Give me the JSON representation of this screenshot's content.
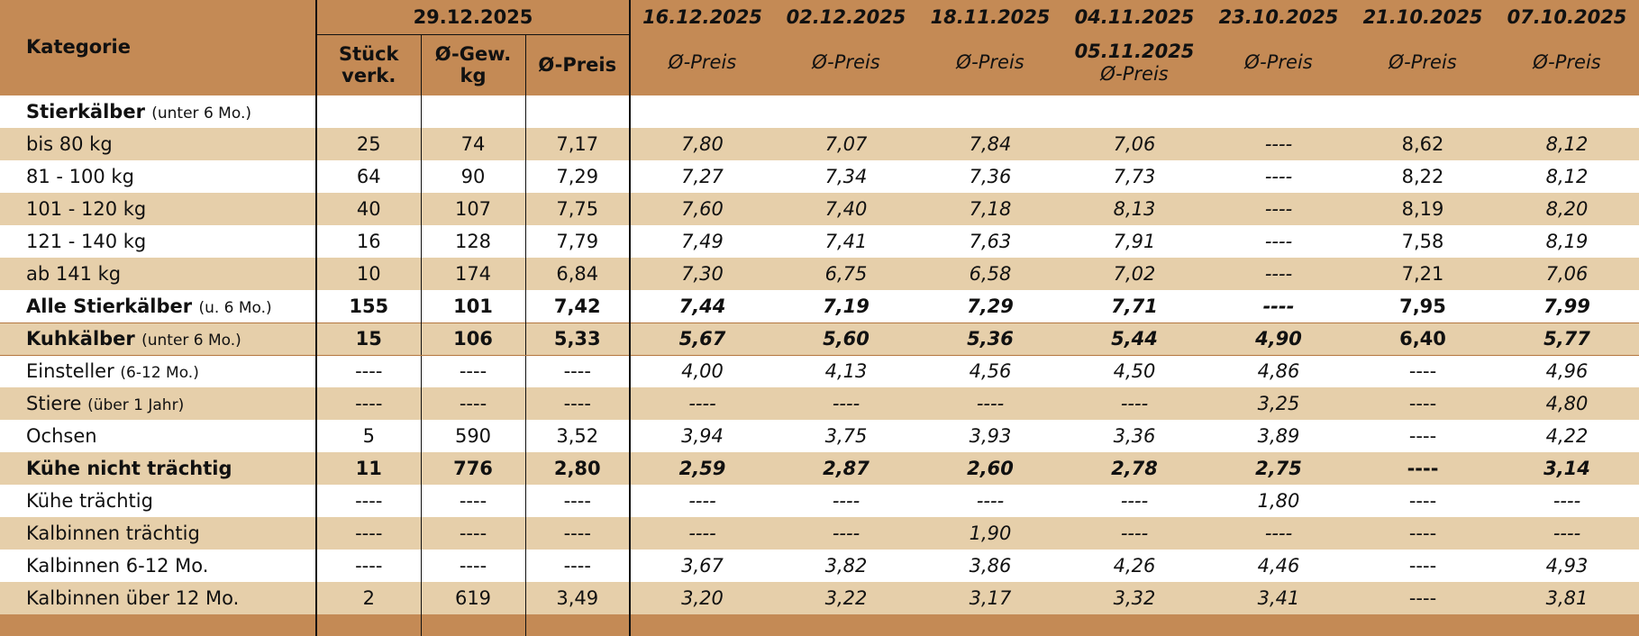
{
  "table": {
    "corner": "Kategorie",
    "group": "29.12.2025",
    "subcolumns": [
      "Stück verk.",
      "Ø-Gew. kg",
      "Ø-Preis"
    ],
    "history": [
      {
        "date": "16.12.2025",
        "sub": "Ø-Preis"
      },
      {
        "date": "02.12.2025",
        "sub": "Ø-Preis"
      },
      {
        "date": "18.11.2025",
        "sub": "Ø-Preis"
      },
      {
        "date": "04.11.2025",
        "date2": "05.11.2025",
        "sub": "Ø-Preis"
      },
      {
        "date": "23.10.2025",
        "sub": "Ø-Preis"
      },
      {
        "date": "21.10.2025",
        "sub": "Ø-Preis"
      },
      {
        "date": "07.10.2025",
        "sub": "Ø-Preis"
      }
    ],
    "rows": [
      {
        "label": "Stierkälber",
        "note": "(unter 6 Mo.)",
        "bold": true
      },
      {
        "label": "bis 80 kg",
        "cells": [
          "25",
          "74",
          "7,17",
          "7,80",
          "7,07",
          "7,84",
          "7,06",
          "----",
          "8,62",
          "8,12"
        ]
      },
      {
        "label": "81 - 100 kg",
        "cells": [
          "64",
          "90",
          "7,29",
          "7,27",
          "7,34",
          "7,36",
          "7,73",
          "----",
          "8,22",
          "8,12"
        ]
      },
      {
        "label": "101 - 120 kg",
        "cells": [
          "40",
          "107",
          "7,75",
          "7,60",
          "7,40",
          "7,18",
          "8,13",
          "----",
          "8,19",
          "8,20"
        ]
      },
      {
        "label": "121 - 140 kg",
        "cells": [
          "16",
          "128",
          "7,79",
          "7,49",
          "7,41",
          "7,63",
          "7,91",
          "----",
          "7,58",
          "8,19"
        ]
      },
      {
        "label": "ab 141 kg",
        "cells": [
          "10",
          "174",
          "6,84",
          "7,30",
          "6,75",
          "6,58",
          "7,02",
          "----",
          "7,21",
          "7,06"
        ]
      },
      {
        "label": "Alle Stierkälber",
        "note": "(u. 6 Mo.)",
        "bold": true,
        "cells": [
          "155",
          "101",
          "7,42",
          "7,44",
          "7,19",
          "7,29",
          "7,71",
          "----",
          "7,95",
          "7,99"
        ]
      },
      {
        "label": "Kuhkälber",
        "note": "(unter 6 Mo.)",
        "bold": true,
        "cells": [
          "15",
          "106",
          "5,33",
          "5,67",
          "5,60",
          "5,36",
          "5,44",
          "4,90",
          "6,40",
          "5,77"
        ]
      },
      {
        "label": "Einsteller",
        "note": "(6-12 Mo.)",
        "cells": [
          "----",
          "----",
          "----",
          "4,00",
          "4,13",
          "4,56",
          "4,50",
          "4,86",
          "----",
          "4,96"
        ]
      },
      {
        "label": "Stiere",
        "note": "(über 1 Jahr)",
        "cells": [
          "----",
          "----",
          "----",
          "----",
          "----",
          "----",
          "----",
          "3,25",
          "----",
          "4,80"
        ]
      },
      {
        "label": "Ochsen",
        "cells": [
          "5",
          "590",
          "3,52",
          "3,94",
          "3,75",
          "3,93",
          "3,36",
          "3,89",
          "----",
          "4,22"
        ]
      },
      {
        "label": "Kühe nicht trächtig",
        "bold": true,
        "cells": [
          "11",
          "776",
          "2,80",
          "2,59",
          "2,87",
          "2,60",
          "2,78",
          "2,75",
          "----",
          "3,14"
        ]
      },
      {
        "label": "Kühe trächtig",
        "cells": [
          "----",
          "----",
          "----",
          "----",
          "----",
          "----",
          "----",
          "1,80",
          "----",
          "----"
        ]
      },
      {
        "label": "Kalbinnen trächtig",
        "cells": [
          "----",
          "----",
          "----",
          "----",
          "----",
          "1,90",
          "----",
          "----",
          "----",
          "----"
        ]
      },
      {
        "label": "Kalbinnen 6-12 Mo.",
        "cells": [
          "----",
          "----",
          "----",
          "3,67",
          "3,82",
          "3,86",
          "4,26",
          "4,46",
          "----",
          "4,93"
        ]
      },
      {
        "label": "Kalbinnen über 12 Mo.",
        "cells": [
          "2",
          "619",
          "3,49",
          "3,20",
          "3,22",
          "3,17",
          "3,32",
          "3,41",
          "----",
          "3,81"
        ]
      }
    ]
  }
}
